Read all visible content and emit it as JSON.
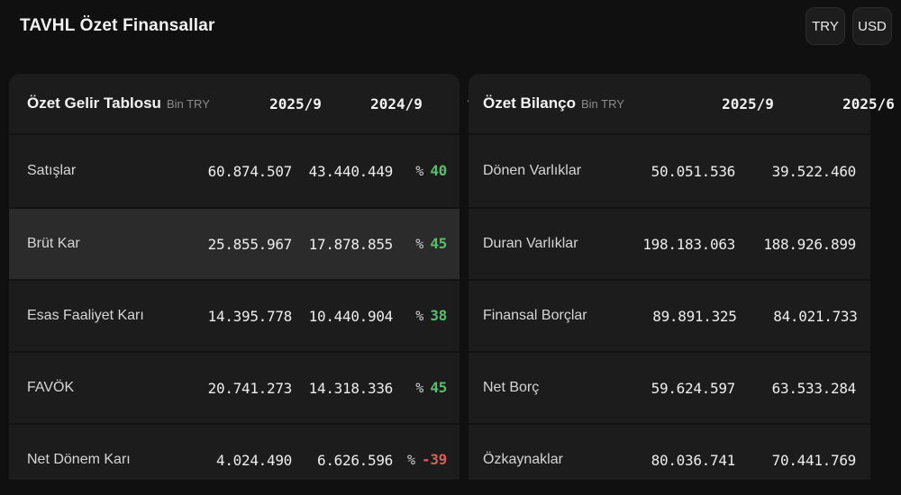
{
  "page": {
    "title": "TAVHL Özet Finansallar",
    "currency_buttons": [
      {
        "label": "TRY",
        "active": true
      },
      {
        "label": "USD",
        "active": false,
        "partially_visible": true
      }
    ]
  },
  "income_table": {
    "title": "Özet Gelir Tablosu",
    "unit": "Bin TRY",
    "columns": [
      "2025/9",
      "2024/9",
      "%"
    ],
    "pct_prefix": "%",
    "rows": [
      {
        "label": "Satışlar",
        "v1": "60.874.507",
        "v2": "43.440.449",
        "pct": "40",
        "highlighted": false
      },
      {
        "label": "Brüt Kar",
        "v1": "25.855.967",
        "v2": "17.878.855",
        "pct": "45",
        "highlighted": true
      },
      {
        "label": "Esas Faaliyet Karı",
        "v1": "14.395.778",
        "v2": "10.440.904",
        "pct": "38",
        "highlighted": false
      },
      {
        "label": "FAVÖK",
        "v1": "20.741.273",
        "v2": "14.318.336",
        "pct": "45",
        "highlighted": false
      },
      {
        "label": "Net Dönem Karı",
        "v1": "4.024.490",
        "v2": "6.626.596",
        "pct": "-39",
        "highlighted": false
      }
    ]
  },
  "balance_table": {
    "title": "Özet Bilanço",
    "unit": "Bin TRY",
    "columns": [
      "2025/9",
      "2025/6"
    ],
    "rows": [
      {
        "label": "Dönen Varlıklar",
        "v1": "50.051.536",
        "v2": "39.522.460"
      },
      {
        "label": "Duran Varlıklar",
        "v1": "198.183.063",
        "v2": "188.926.899"
      },
      {
        "label": "Finansal Borçlar",
        "v1": "89.891.325",
        "v2": "84.021.733"
      },
      {
        "label": "Net Borç",
        "v1": "59.624.597",
        "v2": "63.533.284"
      },
      {
        "label": "Özkaynaklar",
        "v1": "80.036.741",
        "v2": "70.441.769"
      }
    ]
  },
  "colors": {
    "positive": "#58bd6c",
    "negative": "#e2595e",
    "page_background": "#101010",
    "card_background": "#1c1c1c",
    "row_highlight": "#2b2b2b"
  }
}
